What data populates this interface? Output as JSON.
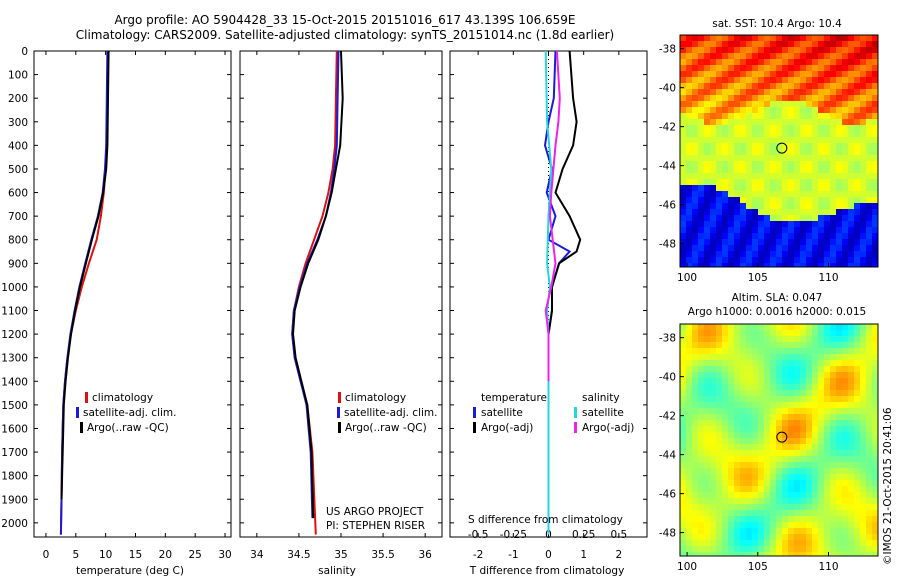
{
  "header": {
    "line1": "Argo profile: AO 5904428_33 15-Oct-2015 20151016_617 43.139S 106.659E",
    "line2": "Climatology: CARS2009. Satellite-adjusted climatology: synTS_20151014.nc (1.8d earlier)"
  },
  "colors": {
    "climatology": "#dd1111",
    "satellite": "#1a1adc",
    "argo": "#000000",
    "sal_satellite": "#22d8e0",
    "sal_argo": "#ee22ee"
  },
  "chart_data": [
    {
      "type": "line",
      "xlabel": "temperature (deg C)",
      "xlim": [
        -2,
        31
      ],
      "xticks": [
        "0",
        "5",
        "10",
        "15",
        "20",
        "25",
        "30"
      ],
      "ylim": [
        0,
        2060
      ],
      "yticks": [
        "0",
        "100",
        "200",
        "300",
        "400",
        "500",
        "600",
        "700",
        "800",
        "900",
        "1000",
        "1100",
        "1200",
        "1300",
        "1400",
        "1500",
        "1600",
        "1700",
        "1800",
        "1900",
        "2000"
      ],
      "legend": [
        "climatology",
        "satellite-adj. clim.",
        "Argo(..raw -QC)"
      ],
      "legend_placement": "lower-right",
      "series": [
        {
          "name": "climatology",
          "color": "red",
          "x": [
            10.4,
            10.3,
            10.2,
            10.0,
            9.7,
            9.2,
            8.5,
            7.2,
            6.0,
            5.0,
            4.2,
            3.6,
            3.2,
            2.9,
            2.7,
            2.6,
            2.5
          ],
          "y": [
            0,
            200,
            400,
            500,
            600,
            700,
            800,
            900,
            1000,
            1100,
            1200,
            1300,
            1400,
            1500,
            1700,
            1900,
            2050
          ]
        },
        {
          "name": "satellite-adj. clim.",
          "color": "blue",
          "x": [
            10.3,
            10.2,
            10.1,
            9.9,
            9.5,
            8.7,
            7.6,
            6.6,
            5.6,
            4.8,
            4.1,
            3.6,
            3.2,
            2.9,
            2.7,
            2.6,
            2.5
          ],
          "y": [
            0,
            200,
            400,
            500,
            600,
            700,
            800,
            900,
            1000,
            1100,
            1200,
            1300,
            1400,
            1500,
            1700,
            1900,
            2050
          ]
        },
        {
          "name": "Argo(..raw -QC)",
          "color": "black",
          "x": [
            10.5,
            10.4,
            10.3,
            10.1,
            9.6,
            8.8,
            7.7,
            6.7,
            5.7,
            4.9,
            4.2,
            3.7,
            3.3,
            3.0,
            2.8,
            2.6
          ],
          "y": [
            0,
            200,
            400,
            500,
            600,
            700,
            800,
            900,
            1000,
            1100,
            1200,
            1300,
            1400,
            1500,
            1700,
            1900
          ]
        }
      ]
    },
    {
      "type": "line",
      "xlabel": "salinity",
      "xlim": [
        33.8,
        36.2
      ],
      "xticks": [
        "34",
        "34.5",
        "35",
        "35.5",
        "36"
      ],
      "ylim": [
        0,
        2060
      ],
      "legend": [
        "climatology",
        "satellite-adj. clim.",
        "Argo(..raw -QC)"
      ],
      "legend_placement": "lower-right",
      "annotation": [
        "US ARGO PROJECT",
        "PI: STEPHEN RISER"
      ],
      "series": [
        {
          "name": "climatology",
          "color": "red",
          "x": [
            34.95,
            34.94,
            34.93,
            34.9,
            34.85,
            34.78,
            34.68,
            34.58,
            34.5,
            34.44,
            34.42,
            34.45,
            34.52,
            34.6,
            34.66,
            34.7
          ],
          "y": [
            0,
            200,
            400,
            500,
            600,
            700,
            800,
            900,
            1000,
            1100,
            1200,
            1300,
            1400,
            1500,
            1700,
            2050
          ]
        },
        {
          "name": "satellite-adj. clim.",
          "color": "blue",
          "x": [
            34.97,
            34.96,
            34.95,
            34.92,
            34.88,
            34.82,
            34.72,
            34.6,
            34.51,
            34.44,
            34.42,
            34.45,
            34.52,
            34.59,
            34.64,
            34.66
          ],
          "y": [
            0,
            200,
            400,
            500,
            600,
            700,
            800,
            900,
            1000,
            1100,
            1200,
            1300,
            1400,
            1500,
            1700,
            1980
          ]
        },
        {
          "name": "Argo(..raw -QC)",
          "color": "black",
          "x": [
            35.0,
            35.02,
            34.99,
            34.94,
            34.89,
            34.82,
            34.73,
            34.61,
            34.52,
            34.45,
            34.43,
            34.46,
            34.53,
            34.6,
            34.65,
            34.67
          ],
          "y": [
            0,
            200,
            400,
            500,
            600,
            700,
            800,
            900,
            1000,
            1100,
            1200,
            1300,
            1400,
            1500,
            1700,
            1980
          ]
        }
      ]
    },
    {
      "type": "line",
      "xlabel": "T difference from climatology",
      "xticks_T": [
        "-2",
        "-1",
        "0",
        "1",
        "2"
      ],
      "xlim_T": [
        -2.8,
        2.8
      ],
      "secondary_xlabel": "S difference from climatology",
      "xticks_S": [
        "-0.5",
        "-0.25",
        "0",
        "0.25",
        "0.5"
      ],
      "xlim_S": [
        -0.7,
        0.7
      ],
      "ylim": [
        0,
        2060
      ],
      "legend": [
        "temperature",
        "satellite",
        "Argo(-adj)",
        "salinity",
        "satellite",
        "Argo(-adj)"
      ],
      "series": [
        {
          "name": "temperature satellite",
          "color": "blue",
          "x": [
            0.2,
            0.15,
            0.0,
            -0.1,
            0.1,
            -0.05,
            0.2,
            0.0,
            0.6,
            0.3,
            0.1,
            0.1,
            0.0,
            0.0,
            0.0,
            0.0,
            0.0
          ],
          "y": [
            0,
            200,
            300,
            400,
            500,
            600,
            700,
            800,
            850,
            900,
            1000,
            1100,
            1200,
            1400,
            1600,
            1800,
            2050
          ]
        },
        {
          "name": "temperature Argo(-adj)",
          "color": "black",
          "x": [
            0.6,
            0.7,
            0.8,
            0.7,
            0.4,
            0.2,
            0.6,
            0.9,
            0.8,
            0.3,
            0.1,
            0.1,
            0.0,
            0.0,
            0.0,
            0.0
          ],
          "y": [
            0,
            200,
            300,
            400,
            500,
            600,
            700,
            800,
            850,
            900,
            1000,
            1100,
            1200,
            1400,
            1600,
            1800
          ]
        },
        {
          "name": "salinity satellite",
          "color": "cyan",
          "x": [
            -0.02,
            -0.01,
            0.02,
            0.0,
            -0.01,
            0.01,
            -0.01,
            0.0,
            0.0,
            0.0,
            0.0,
            0.0
          ],
          "y": [
            0,
            300,
            500,
            700,
            900,
            1000,
            1100,
            1200,
            1400,
            1600,
            1800,
            2050
          ]
        },
        {
          "name": "salinity Argo(-adj)",
          "color": "magenta",
          "x": [
            0.06,
            0.08,
            0.07,
            0.05,
            0.02,
            0.01,
            0.03,
            0.05,
            0.02,
            -0.02,
            0.0,
            0.0
          ],
          "y": [
            0,
            200,
            300,
            400,
            600,
            700,
            800,
            900,
            1000,
            1100,
            1200,
            1400
          ]
        }
      ]
    },
    {
      "type": "heatmap",
      "title": "sat. SST: 10.4  Argo: 10.4",
      "xticks": [
        "100",
        "105",
        "110"
      ],
      "yticks": [
        "-38",
        "-40",
        "-42",
        "-44",
        "-46",
        "-48"
      ],
      "marker": {
        "lon": 106.7,
        "lat": -43.1
      }
    },
    {
      "type": "heatmap",
      "title_line1": "Altim. SLA: 0.047",
      "title_line2": "Argo h1000: 0.0016 h2000: 0.015",
      "xticks": [
        "100",
        "105",
        "110"
      ],
      "yticks": [
        "-38",
        "-40",
        "-42",
        "-44",
        "-46",
        "-48"
      ],
      "marker": {
        "lon": 106.7,
        "lat": -43.1
      }
    }
  ],
  "footer": {
    "stamp": "©IMOS 21-Oct-2015 20:41:06"
  }
}
